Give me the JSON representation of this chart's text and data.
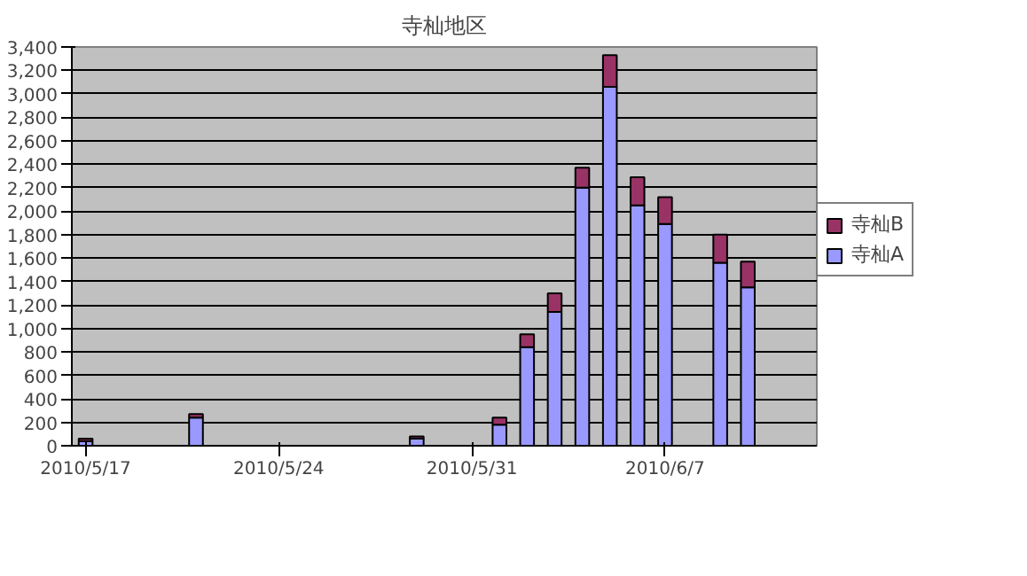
{
  "chart_data": {
    "type": "bar",
    "title": "寺杣地区",
    "stacked": true,
    "x": [
      "2010-05-17",
      "2010-05-21",
      "2010-05-29",
      "2010-06-01",
      "2010-06-02",
      "2010-06-03",
      "2010-06-04",
      "2010-06-05",
      "2010-06-06",
      "2010-06-07",
      "2010-06-09",
      "2010-06-10"
    ],
    "series": [
      {
        "name": "寺杣A",
        "color": "#9999ff",
        "values": [
          40,
          240,
          60,
          180,
          840,
          1140,
          2200,
          3060,
          2050,
          1890,
          1560,
          1350
        ]
      },
      {
        "name": "寺杣B",
        "color": "#993366",
        "values": [
          20,
          30,
          20,
          60,
          110,
          160,
          170,
          270,
          240,
          230,
          240,
          220
        ]
      }
    ],
    "xlim": [
      "2010-05-16T12:00",
      "2010-06-12T12:00"
    ],
    "xticks": [
      {
        "value": "2010-05-17",
        "label": "2010/5/17"
      },
      {
        "value": "2010-05-24",
        "label": "2010/5/24"
      },
      {
        "value": "2010-05-31",
        "label": "2010/5/31"
      },
      {
        "value": "2010-06-07",
        "label": "2010/6/7"
      }
    ],
    "ylim": [
      0,
      3400
    ],
    "yticks": [
      0,
      {
        "value": 200,
        "label": "200"
      },
      {
        "value": 400,
        "label": "400"
      },
      {
        "value": 600,
        "label": "600"
      },
      {
        "value": 800,
        "label": "800"
      },
      {
        "value": 1000,
        "label": "1,000"
      },
      {
        "value": 1200,
        "label": "1,200"
      },
      {
        "value": 1400,
        "label": "1,400"
      },
      {
        "value": 1600,
        "label": "1,600"
      },
      {
        "value": 1800,
        "label": "1,800"
      },
      {
        "value": 2000,
        "label": "2,000"
      },
      {
        "value": 2200,
        "label": "2,200"
      },
      {
        "value": 2400,
        "label": "2,400"
      },
      {
        "value": 2600,
        "label": "2,600"
      },
      {
        "value": 2800,
        "label": "2,800"
      },
      {
        "value": 3000,
        "label": "3,000"
      },
      {
        "value": 3200,
        "label": "3,200"
      },
      {
        "value": 3400,
        "label": "3,400"
      }
    ],
    "grid": "y",
    "legend": "right"
  }
}
